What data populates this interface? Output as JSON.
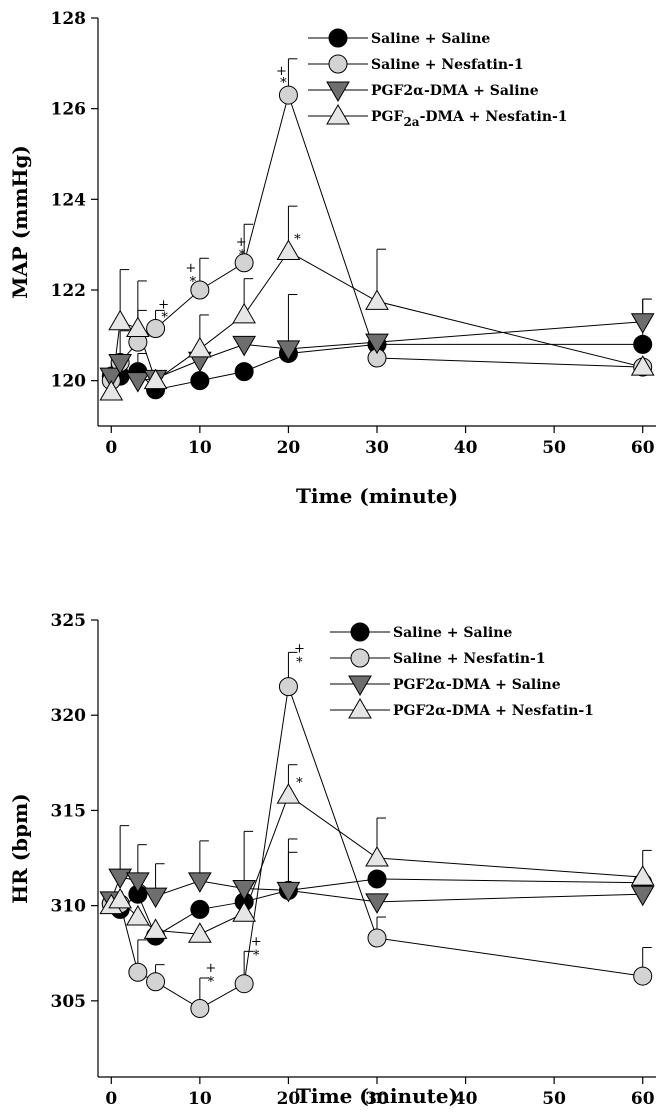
{
  "chart_data": [
    {
      "type": "line",
      "title": "",
      "xlabel": "Time (minute)",
      "ylabel": "MAP (mmHg)",
      "xlim": [
        -1.5,
        61.5
      ],
      "ylim": [
        119,
        128
      ],
      "xticks": [
        0,
        10,
        20,
        30,
        40,
        50,
        60
      ],
      "yticks": [
        120,
        122,
        124,
        126,
        128
      ],
      "legend_position": "top-right",
      "series": [
        {
          "name": "Saline + Saline",
          "marker": "circle",
          "color": "#000000",
          "x": [
            0,
            1,
            3,
            5,
            10,
            15,
            20,
            30,
            60
          ],
          "y": [
            120.1,
            120.1,
            120.2,
            119.8,
            120.0,
            120.2,
            120.6,
            120.8,
            120.8
          ],
          "err": [
            0.0,
            0.0,
            0.0,
            0.0,
            0.0,
            0.0,
            1.3,
            0.0,
            1.0
          ]
        },
        {
          "name": "Saline + Nesfatin-1",
          "marker": "circle",
          "color": "#d3d3d3",
          "x": [
            0,
            1,
            3,
            5,
            10,
            15,
            20,
            30,
            60
          ],
          "y": [
            120.0,
            120.4,
            120.85,
            121.15,
            122.0,
            122.6,
            126.3,
            120.5,
            120.3
          ],
          "err": [
            0.0,
            0.0,
            0.7,
            0.4,
            0.7,
            0.85,
            0.8,
            0.0,
            0.0
          ]
        },
        {
          "name": "PGF2α-DMA + Saline",
          "marker": "triangle-down",
          "color": "#6e6e6e",
          "x": [
            0,
            1,
            3,
            5,
            10,
            15,
            20,
            30,
            60
          ],
          "y": [
            120.1,
            120.4,
            120.0,
            120.05,
            120.45,
            120.8,
            120.7,
            120.85,
            121.3
          ],
          "err": [
            0.3,
            0.7,
            0.6,
            0.0,
            1.0,
            0.0,
            0.0,
            0.0,
            0.5
          ]
        },
        {
          "name": "PGF2a-DMA + Nesfatin-1",
          "marker": "triangle-up",
          "color": "#e6e6e6",
          "x": [
            0,
            1,
            3,
            5,
            10,
            15,
            20,
            30,
            60
          ],
          "y": [
            119.75,
            121.3,
            121.15,
            120.0,
            120.7,
            121.45,
            122.85,
            121.75,
            120.3
          ],
          "err": [
            0.0,
            1.15,
            1.05,
            0.0,
            0.0,
            0.8,
            1.0,
            1.15,
            0.0
          ]
        }
      ],
      "annotations": [
        {
          "x": 5,
          "y": 121.15,
          "offset": 0,
          "text": "+",
          "dx": 8,
          "dy": -20
        },
        {
          "x": 5,
          "y": 121.15,
          "offset": 0,
          "text": "*",
          "dx": 9,
          "dy": -7
        },
        {
          "x": 10,
          "y": 122.0,
          "offset": 0,
          "text": "+",
          "dx": -9,
          "dy": -18
        },
        {
          "x": 10,
          "y": 122.0,
          "offset": 0,
          "text": "*",
          "dx": -7,
          "dy": -4
        },
        {
          "x": 15,
          "y": 122.6,
          "offset": 0,
          "text": "+",
          "dx": -3,
          "dy": -17
        },
        {
          "x": 15,
          "y": 122.6,
          "offset": 0,
          "text": "*",
          "dx": -2,
          "dy": -4
        },
        {
          "x": 20,
          "y": 126.3,
          "offset": 0,
          "text": "+",
          "dx": -7,
          "dy": -20
        },
        {
          "x": 20,
          "y": 126.3,
          "offset": 0,
          "text": "*",
          "dx": -5,
          "dy": -8
        },
        {
          "x": 20,
          "y": 122.85,
          "offset": 0,
          "text": "*",
          "dx": 9,
          "dy": -8
        }
      ],
      "legend": [
        {
          "label": "Saline + Saline"
        },
        {
          "label": "Saline + Nesfatin-1"
        },
        {
          "label": "PGF2α-DMA + Saline"
        },
        {
          "label": "PGF",
          "sub": "2a",
          "tail": "-DMA + Nesfatin-1"
        }
      ]
    },
    {
      "type": "line",
      "title": "",
      "xlabel": "Time (minute)",
      "ylabel": "HR (bpm)",
      "xlim": [
        -1.5,
        61.5
      ],
      "ylim": [
        301,
        325
      ],
      "xticks": [
        0,
        10,
        20,
        30,
        40,
        50,
        60
      ],
      "yticks": [
        305,
        310,
        315,
        320,
        325
      ],
      "legend_position": "top-right",
      "series": [
        {
          "name": "Saline + Saline",
          "marker": "circle",
          "color": "#000000",
          "x": [
            0,
            1,
            3,
            5,
            10,
            15,
            20,
            30,
            60
          ],
          "y": [
            310.1,
            309.8,
            310.6,
            308.4,
            309.8,
            310.2,
            310.8,
            311.4,
            311.2
          ],
          "err": [
            0.0,
            0.0,
            0.0,
            0.0,
            0.0,
            0.0,
            2.7,
            0.0,
            0.0
          ]
        },
        {
          "name": "Saline + Nesfatin-1",
          "marker": "circle",
          "color": "#d3d3d3",
          "x": [
            0,
            1,
            3,
            5,
            10,
            15,
            20,
            30,
            60
          ],
          "y": [
            310.1,
            310.1,
            306.5,
            306.0,
            304.6,
            305.9,
            321.5,
            308.3,
            306.3
          ],
          "err": [
            0.0,
            0.0,
            1.7,
            0.9,
            1.6,
            1.7,
            1.8,
            1.1,
            1.5
          ]
        },
        {
          "name": "PGF2α-DMA + Saline",
          "marker": "triangle-down",
          "color": "#6e6e6e",
          "x": [
            0,
            1,
            3,
            5,
            10,
            15,
            20,
            30,
            60
          ],
          "y": [
            310.3,
            311.5,
            311.3,
            310.5,
            311.3,
            310.9,
            310.8,
            310.2,
            310.6
          ],
          "err": [
            0.0,
            2.7,
            1.9,
            1.7,
            2.1,
            3.0,
            2.0,
            0.0,
            0.0
          ]
        },
        {
          "name": "PGF2α-DMA + Nesfatin-1",
          "marker": "triangle-up",
          "color": "#e6e6e6",
          "x": [
            0,
            1,
            3,
            5,
            10,
            15,
            20,
            30,
            60
          ],
          "y": [
            310.0,
            310.3,
            309.4,
            308.7,
            308.5,
            309.6,
            315.8,
            312.5,
            311.5
          ],
          "err": [
            0.0,
            0.0,
            0.0,
            0.0,
            0.0,
            0.0,
            1.6,
            2.1,
            1.4
          ]
        }
      ],
      "annotations": [
        {
          "x": 10,
          "y": 304.6,
          "offset": 1.6,
          "text": "+",
          "dx": 11,
          "dy": -6
        },
        {
          "x": 10,
          "y": 304.6,
          "offset": 1.6,
          "text": "*",
          "dx": 11,
          "dy": 8
        },
        {
          "x": 15,
          "y": 305.9,
          "offset": 1.7,
          "text": "+",
          "dx": 12,
          "dy": -6
        },
        {
          "x": 15,
          "y": 305.9,
          "offset": 1.7,
          "text": "*",
          "dx": 12,
          "dy": 8
        },
        {
          "x": 20,
          "y": 321.5,
          "offset": 1.8,
          "text": "+",
          "dx": 11,
          "dy": 0
        },
        {
          "x": 20,
          "y": 321.5,
          "offset": 1.8,
          "text": "*",
          "dx": 11,
          "dy": 14
        },
        {
          "x": 20,
          "y": 315.8,
          "offset": 0,
          "text": "*",
          "dx": 11,
          "dy": -8
        }
      ],
      "legend": [
        {
          "label": "Saline + Saline"
        },
        {
          "label": "Saline + Nesfatin-1"
        },
        {
          "label": "PGF2α-DMA + Saline"
        },
        {
          "label": "PGF2α-DMA + Nesfatin-1"
        }
      ]
    }
  ]
}
